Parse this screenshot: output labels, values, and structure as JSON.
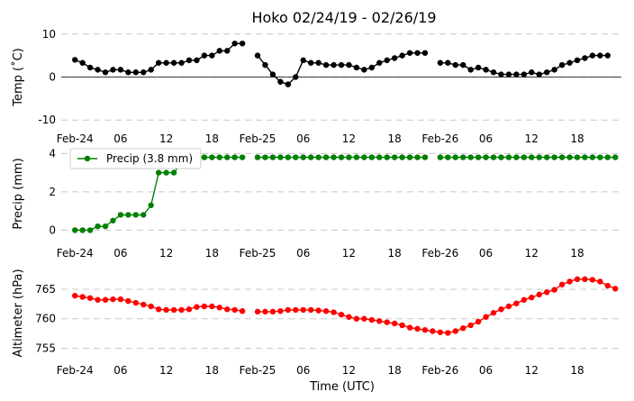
{
  "chart_data": {
    "type": "line",
    "title": "Hoko 02/24/19 - 02/26/19",
    "xlabel": "Time (UTC)",
    "xtick_labels": [
      "Feb-24",
      "06",
      "12",
      "18",
      "Feb-25",
      "06",
      "12",
      "18",
      "Feb-26",
      "06",
      "12",
      "18"
    ],
    "xtick_hours": [
      0,
      6,
      12,
      18,
      24,
      30,
      36,
      42,
      48,
      54,
      60,
      66
    ],
    "xlim_hours": [
      -1.8,
      71.8
    ],
    "hours": [
      0,
      1,
      2,
      3,
      4,
      5,
      6,
      7,
      8,
      9,
      10,
      11,
      12,
      13,
      14,
      15,
      16,
      17,
      18,
      19,
      20,
      21,
      22,
      23,
      24,
      25,
      26,
      27,
      28,
      29,
      30,
      31,
      32,
      33,
      34,
      35,
      36,
      37,
      38,
      39,
      40,
      41,
      42,
      43,
      44,
      45,
      46,
      47,
      48,
      49,
      50,
      51,
      52,
      53,
      54,
      55,
      56,
      57,
      58,
      59,
      60,
      61,
      62,
      63,
      64,
      65,
      66,
      67,
      68,
      69,
      70,
      71
    ],
    "panels": [
      {
        "ylabel": "Temp (˚C)",
        "ylim": [
          -11,
          11
        ],
        "yticks": [
          -10,
          0,
          10
        ],
        "zero_line": true,
        "grid": "horizontal dashed",
        "legend": null,
        "series": [
          {
            "color": "#000000",
            "values": [
              4.0,
              3.3,
              2.2,
              1.7,
              1.1,
              1.7,
              1.7,
              1.1,
              1.1,
              1.1,
              1.7,
              3.3,
              3.3,
              3.3,
              3.3,
              3.9,
              3.9,
              5.0,
              5.0,
              6.1,
              6.1,
              7.8,
              7.8,
              null,
              5.0,
              2.8,
              0.6,
              -1.1,
              -1.7,
              0.0,
              3.9,
              3.3,
              3.3,
              2.8,
              2.8,
              2.8,
              2.8,
              2.2,
              1.7,
              2.2,
              3.3,
              3.9,
              4.4,
              5.0,
              5.6,
              5.6,
              5.6,
              null,
              3.3,
              3.3,
              2.8,
              2.8,
              1.7,
              2.2,
              1.7,
              1.1,
              0.6,
              0.6,
              0.6,
              0.6,
              1.1,
              0.6,
              1.1,
              1.7,
              2.8,
              3.3,
              3.9,
              4.4,
              5.0,
              5.0,
              5.0,
              null
            ]
          }
        ]
      },
      {
        "ylabel": "Precip (mm)",
        "ylim": [
          -0.45,
          4.25
        ],
        "yticks": [
          0,
          2,
          4
        ],
        "zero_line": false,
        "grid": "horizontal dashed",
        "legend": "upper left",
        "series": [
          {
            "name": "Precip (3.8 mm)",
            "color": "#008000",
            "values": [
              0.0,
              0.0,
              0.0,
              0.2,
              0.2,
              0.5,
              0.8,
              0.8,
              0.8,
              0.8,
              1.3,
              3.0,
              3.0,
              3.0,
              3.5,
              3.8,
              3.8,
              3.8,
              3.8,
              3.8,
              3.8,
              3.8,
              3.8,
              null,
              3.8,
              3.8,
              3.8,
              3.8,
              3.8,
              3.8,
              3.8,
              3.8,
              3.8,
              3.8,
              3.8,
              3.8,
              3.8,
              3.8,
              3.8,
              3.8,
              3.8,
              3.8,
              3.8,
              3.8,
              3.8,
              3.8,
              3.8,
              null,
              3.8,
              3.8,
              3.8,
              3.8,
              3.8,
              3.8,
              3.8,
              3.8,
              3.8,
              3.8,
              3.8,
              3.8,
              3.8,
              3.8,
              3.8,
              3.8,
              3.8,
              3.8,
              3.8,
              3.8,
              3.8,
              3.8,
              3.8,
              3.8
            ]
          }
        ]
      },
      {
        "ylabel": "Altimeter (hPa)",
        "ylim": [
          753.7,
          768.2
        ],
        "yticks": [
          755,
          760,
          765
        ],
        "zero_line": false,
        "grid": "horizontal dashed",
        "legend": null,
        "series": [
          {
            "color": "#ff0000",
            "values": [
              763.9,
              763.7,
              763.5,
              763.2,
              763.2,
              763.3,
              763.3,
              763.0,
              762.7,
              762.4,
              762.1,
              761.6,
              761.5,
              761.5,
              761.5,
              761.6,
              762.0,
              762.1,
              762.1,
              761.9,
              761.6,
              761.5,
              761.3,
              null,
              761.2,
              761.2,
              761.2,
              761.3,
              761.5,
              761.5,
              761.5,
              761.5,
              761.4,
              761.3,
              761.1,
              760.7,
              760.3,
              760.0,
              760.0,
              759.8,
              759.6,
              759.4,
              759.2,
              758.9,
              758.5,
              758.3,
              758.1,
              757.9,
              757.7,
              757.6,
              757.9,
              758.4,
              758.9,
              759.5,
              760.3,
              761.0,
              761.6,
              762.1,
              762.6,
              763.2,
              763.6,
              764.1,
              764.5,
              764.9,
              765.8,
              766.3,
              766.7,
              766.7,
              766.6,
              766.3,
              765.6,
              765.1
            ]
          }
        ]
      }
    ]
  }
}
